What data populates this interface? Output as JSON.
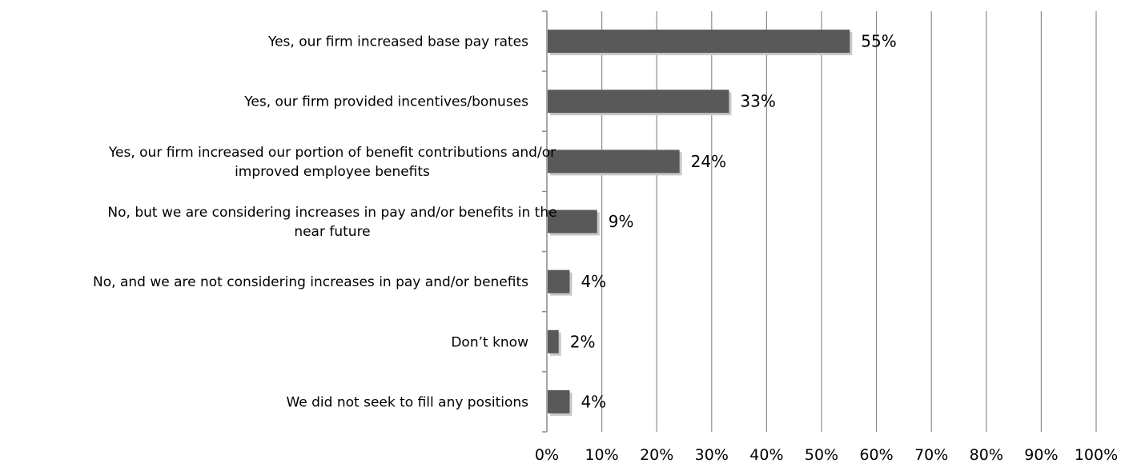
{
  "chart_data": {
    "type": "bar",
    "orientation": "horizontal",
    "categories": [
      [
        "Yes, our firm increased base pay rates"
      ],
      [
        "Yes, our firm provided incentives/bonuses"
      ],
      [
        "Yes, our firm increased our portion of benefit contributions and/or",
        "improved employee benefits"
      ],
      [
        "No, but we are considering increases in pay and/or benefits in the",
        "near future"
      ],
      [
        "No, and we are not considering increases in pay and/or benefits"
      ],
      [
        "Don’t know"
      ],
      [
        "We did not seek to fill any positions"
      ]
    ],
    "values": [
      55,
      33,
      24,
      9,
      4,
      2,
      4
    ],
    "value_labels": [
      "55%",
      "33%",
      "24%",
      "9%",
      "4%",
      "2%",
      "4%"
    ],
    "xlim": [
      0,
      100
    ],
    "xticks": [
      0,
      10,
      20,
      30,
      40,
      50,
      60,
      70,
      80,
      90,
      100
    ],
    "xtick_labels": [
      "0%",
      "10%",
      "20%",
      "30%",
      "40%",
      "50%",
      "60%",
      "70%",
      "80%",
      "90%",
      "100%"
    ],
    "grid": true,
    "colors": {
      "bar": "#595959",
      "bar_shadow": "#c8c8c8",
      "grid": "#8c8c8c",
      "axis": "#8c8c8c"
    }
  }
}
